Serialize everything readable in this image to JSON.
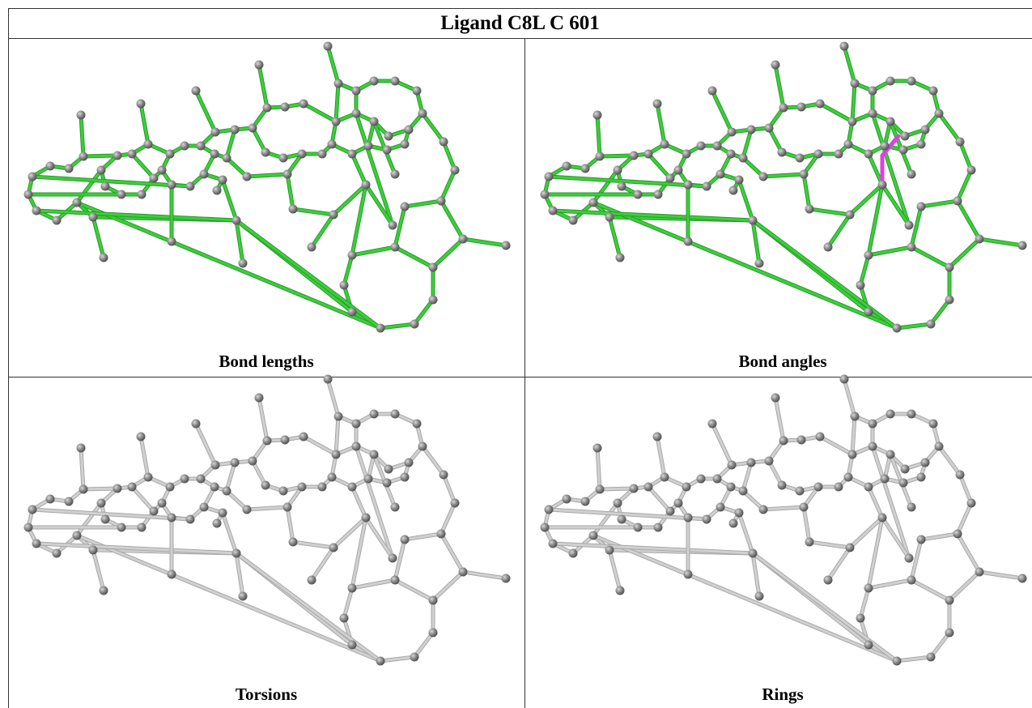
{
  "title": "Ligand C8L C 601",
  "panels": [
    {
      "label": "Bond lengths"
    },
    {
      "label": "Bond angles"
    },
    {
      "label": "Torsions"
    },
    {
      "label": "Rings"
    }
  ]
}
